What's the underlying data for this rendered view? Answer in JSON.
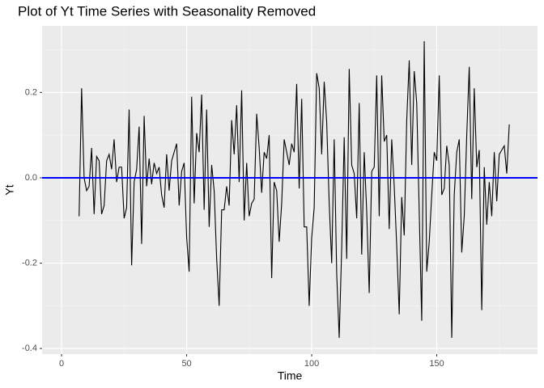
{
  "chart_data": {
    "type": "line",
    "title": "Plot of Yt Time Series with Seasonality Removed",
    "x_label": "Time",
    "y_label": "Yt",
    "x": [
      7,
      8,
      9,
      10,
      11,
      12,
      13,
      14,
      15,
      16,
      17,
      18,
      19,
      20,
      21,
      22,
      23,
      24,
      25,
      26,
      27,
      28,
      29,
      30,
      31,
      32,
      33,
      34,
      35,
      36,
      37,
      38,
      39,
      40,
      41,
      42,
      43,
      44,
      45,
      46,
      47,
      48,
      49,
      50,
      51,
      52,
      53,
      54,
      55,
      56,
      57,
      58,
      59,
      60,
      61,
      62,
      63,
      64,
      65,
      66,
      67,
      68,
      69,
      70,
      71,
      72,
      73,
      74,
      75,
      76,
      77,
      78,
      79,
      80,
      81,
      82,
      83,
      84,
      85,
      86,
      87,
      88,
      89,
      90,
      91,
      92,
      93,
      94,
      95,
      96,
      97,
      98,
      99,
      100,
      101,
      102,
      103,
      104,
      105,
      106,
      107,
      108,
      109,
      110,
      111,
      112,
      113,
      114,
      115,
      116,
      117,
      118,
      119,
      120,
      121,
      122,
      123,
      124,
      125,
      126,
      127,
      128,
      129,
      130,
      131,
      132,
      133,
      134,
      135,
      136,
      137,
      138,
      139,
      140,
      141,
      142,
      143,
      144,
      145,
      146,
      147,
      148,
      149,
      150,
      151,
      152,
      153,
      154,
      155,
      156,
      157,
      158,
      159,
      160,
      161,
      162,
      163,
      164,
      165,
      166,
      167,
      168,
      169,
      170,
      171,
      172,
      173,
      174,
      175,
      176,
      177,
      178,
      179
    ],
    "values": [
      -0.09,
      0.21,
      0.0,
      -0.03,
      -0.02,
      0.07,
      -0.085,
      0.05,
      0.04,
      -0.085,
      -0.065,
      0.04,
      0.055,
      0.02,
      0.09,
      -0.01,
      0.025,
      0.025,
      -0.095,
      -0.07,
      0.16,
      -0.205,
      -0.01,
      0.02,
      0.12,
      -0.155,
      0.145,
      -0.02,
      0.045,
      -0.015,
      0.035,
      0.01,
      0.025,
      -0.04,
      -0.07,
      0.055,
      -0.03,
      0.04,
      0.06,
      0.08,
      -0.065,
      0.015,
      0.035,
      -0.14,
      -0.22,
      0.19,
      -0.06,
      0.105,
      0.06,
      0.195,
      -0.075,
      0.16,
      -0.115,
      0.03,
      -0.03,
      -0.19,
      -0.3,
      -0.075,
      -0.075,
      -0.02,
      -0.065,
      0.135,
      0.055,
      0.17,
      -0.01,
      0.205,
      -0.1,
      0.035,
      -0.09,
      -0.06,
      -0.05,
      0.15,
      0.07,
      -0.035,
      0.06,
      0.045,
      0.1,
      -0.235,
      -0.01,
      -0.03,
      -0.15,
      -0.06,
      0.09,
      0.06,
      0.03,
      0.08,
      0.06,
      0.22,
      -0.025,
      0.185,
      -0.115,
      -0.115,
      -0.3,
      -0.14,
      -0.07,
      0.245,
      0.21,
      0.055,
      0.225,
      0.13,
      -0.06,
      -0.2,
      0.09,
      -0.225,
      -0.375,
      -0.165,
      0.095,
      -0.19,
      0.255,
      0.03,
      0.01,
      -0.095,
      0.175,
      -0.18,
      0.06,
      -0.08,
      -0.27,
      0.015,
      0.025,
      0.24,
      -0.09,
      0.24,
      0.085,
      0.1,
      -0.12,
      0.09,
      -0.02,
      -0.16,
      -0.32,
      -0.045,
      -0.135,
      0.135,
      0.275,
      0.03,
      0.25,
      0.175,
      -0.08,
      -0.335,
      0.32,
      -0.22,
      -0.15,
      -0.04,
      0.06,
      0.04,
      0.24,
      -0.04,
      -0.025,
      0.075,
      0.03,
      -0.375,
      -0.04,
      0.06,
      0.09,
      -0.175,
      -0.09,
      0.1,
      0.26,
      -0.05,
      0.21,
      0.025,
      0.065,
      -0.31,
      0.025,
      -0.11,
      -0.01,
      -0.09,
      0.06,
      -0.055,
      0.055,
      0.065,
      0.075,
      0.01,
      0.125
    ],
    "color": "#000000",
    "hline": {
      "value": 0,
      "color": "#0000ff"
    },
    "xlim": [
      -7.8,
      190.3
    ],
    "xticks": [
      0,
      50,
      100,
      150
    ],
    "ylim": [
      -0.413,
      0.356
    ],
    "yticks": [
      -0.4,
      -0.2,
      {
        "value": 0,
        "label": "0.0"
      },
      0.2
    ],
    "grid": true
  }
}
